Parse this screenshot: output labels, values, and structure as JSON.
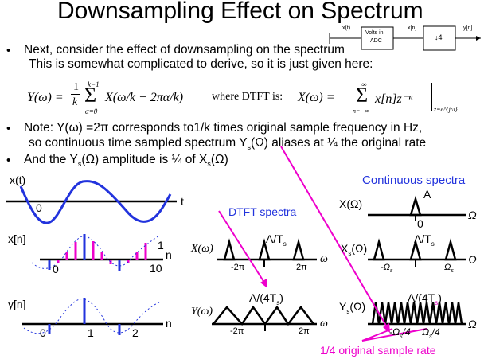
{
  "title": "Downsampling Effect on Spectrum",
  "block_diagram": {
    "in_label": "x(t)",
    "adc_line1": "Volts in",
    "adc_line2": "ADC",
    "mid_label": "x[n]",
    "dec_label": "↓4",
    "out_label": "y[n]"
  },
  "bullets": {
    "b1": "Next, consider the effect of downsampling on the spectrum",
    "b1_cont": "This is somewhat complicated to derive, so it is just given here:",
    "formula_lhs": "Y(ω) =",
    "formula_frac_top": "1",
    "formula_frac_bot": "k",
    "formula_sum_top": "k−1",
    "formula_sum_bot": "α=0",
    "formula_body": "X(ω/k − 2πα/k)",
    "formula_where": "where DTFT is:",
    "dtft_lhs": "X(ω) =",
    "dtft_sum_top": "∞",
    "dtft_sum_bot": "n=−∞",
    "dtft_body": "x[n]z⁻ⁿ",
    "dtft_sub": "z=e^{jω}",
    "b2_line1": "Note: Y(ω) =2π  corresponds to1/k times original sample frequency in Hz,",
    "b2_line2_a": "so continuous time sampled spectrum Y",
    "b2_line2_sub": "s",
    "b2_line2_b": "(Ω) aliases at ¼ the original rate",
    "b3_a": "And the Y",
    "b3_sub1": "s",
    "b3_b": "(Ω) amplitude is ¼ of X",
    "b3_sub2": "s",
    "b3_c": "(Ω)"
  },
  "labels": {
    "xt": "x(t)",
    "t_axis": "t",
    "zero": "0",
    "xn": "x[n]",
    "n_axis": "n",
    "one": "1",
    "ten": "10",
    "yn": "y[n]",
    "two": "2",
    "dtft_spectra": "DTFT spectra",
    "continuous_spectra": "Continuous spectra",
    "X_omega": "X(ω)",
    "Y_omega": "Y(ω)",
    "A_over_Ts": "A/T",
    "A_over_Ts_sub": "s",
    "A_over_4Ts": "A/(4T",
    "A_over_4Ts_sub": "s",
    "A_over_4Ts_end": ")",
    "two_pi_neg": "-2π",
    "two_pi": "2π",
    "omega": "ω",
    "X_Omega": "X(Ω)",
    "Xs_Omega": "X",
    "Xs_sub": "s",
    "Xs_end": "(Ω)",
    "Ys_Omega": "Y",
    "Ys_sub": "s",
    "Ys_end": "(Ω)",
    "A": "A",
    "Omega": "Ω",
    "neg_omega_s": "-Ω",
    "omega_s": "Ω",
    "omega_s_sub": "s",
    "neg_omega_s4": "-Ω",
    "omega_s4_end": "/4",
    "omega_s4": "Ω",
    "quarter_rate": "1/4 original sample rate"
  },
  "colors": {
    "blue": "#2233dd",
    "magenta": "#ee00cc",
    "black": "#000000"
  }
}
